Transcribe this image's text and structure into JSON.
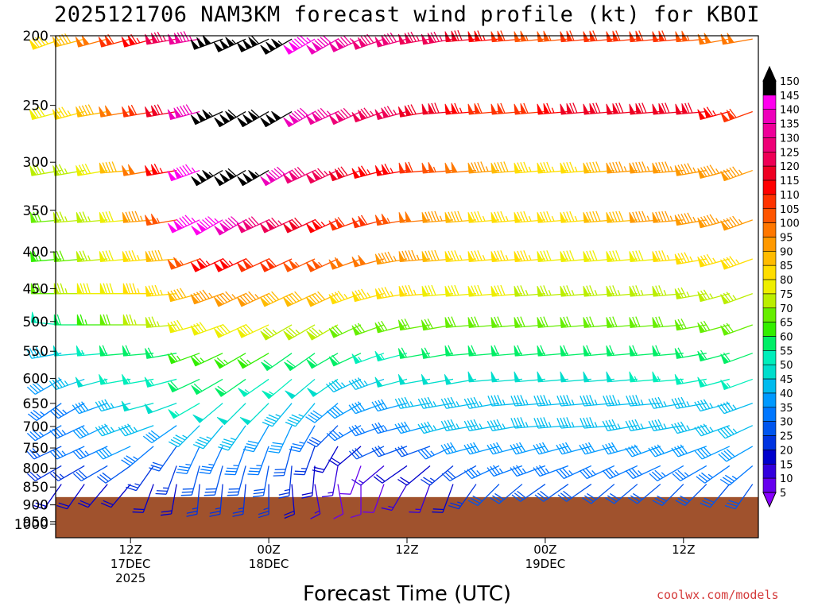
{
  "chart_data": {
    "type": "wind-barb-profile",
    "title": "2025121706 NAM3KM forecast wind profile (kt) for KBOI",
    "xlabel": "Forecast Time (UTC)",
    "ylabel": "",
    "y_scale": "log-pressure",
    "ylim": [
      1000,
      200
    ],
    "y_ticks": [
      200,
      250,
      300,
      350,
      400,
      450,
      500,
      550,
      600,
      650,
      700,
      750,
      800,
      850,
      900,
      950,
      1000
    ],
    "x_range_hours": [
      -0.5,
      60.5
    ],
    "x_ticks": [
      {
        "hour": 6,
        "lines": [
          "12Z",
          "17DEC",
          "2025"
        ]
      },
      {
        "hour": 18,
        "lines": [
          "00Z",
          "18DEC"
        ]
      },
      {
        "hour": 30,
        "lines": [
          "12Z"
        ]
      },
      {
        "hour": 42,
        "lines": [
          "00Z",
          "19DEC"
        ]
      },
      {
        "hour": 54,
        "lines": [
          "12Z"
        ]
      }
    ],
    "levels_hpa": [
      210,
      265,
      320,
      375,
      425,
      475,
      525,
      575,
      625,
      675,
      725,
      775,
      825,
      875,
      925
    ],
    "terrain_pressure_hpa": 912,
    "colorbar": {
      "values": [
        5,
        10,
        15,
        20,
        25,
        30,
        35,
        40,
        45,
        50,
        55,
        60,
        65,
        70,
        75,
        80,
        85,
        90,
        95,
        100,
        105,
        110,
        115,
        120,
        125,
        130,
        135,
        140,
        145,
        150
      ],
      "colors": [
        "#8800ff",
        "#6600ee",
        "#3300dd",
        "#0000cc",
        "#0033e0",
        "#0055ee",
        "#0077ff",
        "#0099ff",
        "#00bbee",
        "#00ddcc",
        "#00eebb",
        "#00ee66",
        "#33ee00",
        "#66ee00",
        "#bbee00",
        "#eeee00",
        "#ffdd00",
        "#ffbb00",
        "#ff9900",
        "#ff7700",
        "#ff5500",
        "#ff3300",
        "#ff0000",
        "#ee0022",
        "#ee0055",
        "#ee0077",
        "#ee0099",
        "#ee00bb",
        "#ff00ee",
        "#000000"
      ],
      "over_color": "#000000",
      "under_color": "#8800ff"
    },
    "profiles": [
      {
        "hour": 0,
        "dir": [
          250,
          255,
          260,
          265,
          265,
          270,
          275,
          260,
          240,
          235,
          240,
          245,
          240,
          215,
          195
        ],
        "spd": [
          85,
          80,
          75,
          70,
          65,
          70,
          55,
          45,
          40,
          35,
          35,
          30,
          25,
          20,
          15
        ]
      },
      {
        "hour": 2,
        "dir": [
          255,
          255,
          260,
          265,
          265,
          270,
          270,
          265,
          250,
          240,
          245,
          245,
          240,
          215,
          200
        ],
        "spd": [
          90,
          85,
          75,
          75,
          70,
          75,
          60,
          50,
          45,
          35,
          35,
          35,
          25,
          20,
          15
        ]
      },
      {
        "hour": 4,
        "dir": [
          255,
          260,
          260,
          265,
          265,
          270,
          270,
          265,
          255,
          250,
          245,
          245,
          240,
          220,
          200
        ],
        "spd": [
          100,
          90,
          80,
          75,
          75,
          80,
          65,
          55,
          50,
          40,
          40,
          35,
          30,
          20,
          15
        ]
      },
      {
        "hour": 6,
        "dir": [
          255,
          260,
          265,
          265,
          265,
          270,
          270,
          265,
          260,
          255,
          250,
          245,
          235,
          220,
          200
        ],
        "spd": [
          110,
          100,
          90,
          80,
          80,
          80,
          70,
          60,
          55,
          45,
          45,
          40,
          30,
          20,
          15
        ]
      },
      {
        "hour": 8,
        "dir": [
          255,
          260,
          260,
          265,
          265,
          270,
          270,
          265,
          260,
          255,
          250,
          230,
          215,
          200,
          190
        ],
        "spd": [
          115,
          110,
          100,
          95,
          85,
          85,
          75,
          60,
          55,
          50,
          45,
          35,
          25,
          20,
          15
        ]
      },
      {
        "hour": 10,
        "dir": [
          260,
          260,
          260,
          260,
          265,
          265,
          265,
          260,
          255,
          250,
          235,
          215,
          200,
          190,
          180
        ],
        "spd": [
          125,
          120,
          115,
          105,
          90,
          85,
          75,
          60,
          55,
          50,
          40,
          30,
          25,
          20,
          15
        ]
      },
      {
        "hour": 12,
        "dir": [
          260,
          255,
          250,
          245,
          250,
          255,
          255,
          250,
          245,
          240,
          225,
          205,
          195,
          185,
          175
        ],
        "spd": [
          135,
          140,
          145,
          145,
          105,
          90,
          80,
          65,
          60,
          55,
          45,
          35,
          30,
          25,
          20
        ]
      },
      {
        "hour": 14,
        "dir": [
          250,
          245,
          240,
          240,
          245,
          250,
          250,
          245,
          240,
          230,
          220,
          205,
          195,
          185,
          175
        ],
        "spd": [
          150,
          155,
          155,
          145,
          115,
          95,
          80,
          65,
          60,
          50,
          45,
          35,
          30,
          25,
          20
        ]
      },
      {
        "hour": 16,
        "dir": [
          245,
          240,
          240,
          240,
          245,
          245,
          245,
          240,
          235,
          225,
          215,
          200,
          195,
          185,
          170
        ],
        "spd": [
          155,
          160,
          160,
          140,
          115,
          95,
          80,
          65,
          60,
          50,
          45,
          35,
          30,
          25,
          20
        ]
      },
      {
        "hour": 18,
        "dir": [
          245,
          240,
          240,
          245,
          245,
          245,
          245,
          240,
          235,
          225,
          210,
          200,
          190,
          180,
          165
        ],
        "spd": [
          160,
          160,
          155,
          130,
          110,
          95,
          80,
          65,
          55,
          50,
          40,
          35,
          30,
          25,
          15
        ]
      },
      {
        "hour": 20,
        "dir": [
          240,
          240,
          240,
          245,
          245,
          245,
          240,
          235,
          230,
          220,
          205,
          195,
          185,
          175,
          160
        ],
        "spd": [
          155,
          150,
          140,
          125,
          110,
          90,
          75,
          60,
          55,
          45,
          40,
          30,
          25,
          20,
          15
        ]
      },
      {
        "hour": 22,
        "dir": [
          240,
          240,
          245,
          245,
          245,
          245,
          240,
          235,
          230,
          220,
          210,
          200,
          185,
          170,
          155
        ],
        "spd": [
          145,
          140,
          130,
          120,
          105,
          90,
          75,
          60,
          50,
          45,
          35,
          25,
          20,
          15,
          10
        ]
      },
      {
        "hour": 24,
        "dir": [
          240,
          245,
          245,
          245,
          245,
          245,
          240,
          240,
          235,
          230,
          225,
          210,
          190,
          170,
          150
        ],
        "spd": [
          140,
          135,
          125,
          115,
          105,
          90,
          75,
          60,
          50,
          40,
          30,
          20,
          15,
          10,
          5
        ]
      },
      {
        "hour": 26,
        "dir": [
          245,
          245,
          250,
          250,
          250,
          250,
          245,
          245,
          245,
          240,
          240,
          230,
          200,
          180,
          160
        ],
        "spd": [
          135,
          130,
          120,
          110,
          100,
          85,
          70,
          60,
          45,
          40,
          35,
          20,
          10,
          8,
          5
        ]
      },
      {
        "hour": 28,
        "dir": [
          250,
          250,
          255,
          255,
          255,
          255,
          250,
          250,
          250,
          250,
          250,
          245,
          230,
          200,
          170
        ],
        "spd": [
          130,
          125,
          115,
          110,
          100,
          85,
          70,
          55,
          45,
          40,
          35,
          30,
          15,
          10,
          10
        ]
      },
      {
        "hour": 30,
        "dir": [
          255,
          255,
          260,
          260,
          260,
          260,
          255,
          255,
          255,
          255,
          255,
          250,
          235,
          210,
          180
        ],
        "spd": [
          130,
          125,
          115,
          105,
          95,
          85,
          70,
          55,
          50,
          40,
          35,
          30,
          20,
          15,
          10
        ]
      },
      {
        "hour": 32,
        "dir": [
          260,
          260,
          265,
          265,
          265,
          265,
          260,
          260,
          260,
          260,
          255,
          250,
          230,
          200,
          170
        ],
        "spd": [
          125,
          120,
          110,
          100,
          95,
          85,
          70,
          60,
          50,
          45,
          40,
          30,
          20,
          15,
          10
        ]
      },
      {
        "hour": 34,
        "dir": [
          260,
          265,
          265,
          265,
          265,
          265,
          260,
          260,
          260,
          260,
          255,
          245,
          230,
          200,
          170
        ],
        "spd": [
          125,
          120,
          105,
          95,
          90,
          80,
          70,
          60,
          50,
          45,
          45,
          35,
          25,
          20,
          15
        ]
      },
      {
        "hour": 36,
        "dir": [
          265,
          265,
          265,
          265,
          265,
          265,
          265,
          265,
          260,
          260,
          260,
          255,
          240,
          215,
          185
        ],
        "spd": [
          120,
          115,
          100,
          90,
          85,
          80,
          70,
          60,
          50,
          45,
          45,
          40,
          30,
          25,
          20
        ]
      },
      {
        "hour": 38,
        "dir": [
          265,
          265,
          265,
          265,
          265,
          265,
          265,
          265,
          265,
          260,
          260,
          255,
          245,
          225,
          195
        ],
        "spd": [
          115,
          110,
          95,
          85,
          85,
          80,
          70,
          60,
          50,
          45,
          45,
          40,
          35,
          30,
          20
        ]
      },
      {
        "hour": 40,
        "dir": [
          265,
          265,
          265,
          265,
          265,
          265,
          265,
          265,
          265,
          265,
          260,
          255,
          250,
          230,
          200
        ],
        "spd": [
          110,
          110,
          90,
          85,
          85,
          80,
          70,
          60,
          50,
          45,
          45,
          40,
          35,
          30,
          20
        ]
      },
      {
        "hour": 42,
        "dir": [
          265,
          265,
          265,
          265,
          265,
          265,
          265,
          265,
          265,
          265,
          265,
          255,
          250,
          235,
          205
        ],
        "spd": [
          105,
          110,
          85,
          85,
          85,
          75,
          70,
          60,
          50,
          45,
          45,
          40,
          35,
          30,
          20
        ]
      },
      {
        "hour": 44,
        "dir": [
          265,
          265,
          265,
          265,
          265,
          265,
          265,
          265,
          265,
          265,
          265,
          255,
          250,
          235,
          210
        ],
        "spd": [
          105,
          115,
          85,
          85,
          80,
          75,
          70,
          60,
          50,
          45,
          45,
          40,
          35,
          30,
          20
        ]
      },
      {
        "hour": 46,
        "dir": [
          265,
          265,
          265,
          265,
          265,
          265,
          265,
          265,
          265,
          265,
          265,
          255,
          245,
          235,
          215
        ],
        "spd": [
          110,
          120,
          85,
          85,
          80,
          75,
          70,
          60,
          50,
          45,
          45,
          40,
          35,
          30,
          20
        ]
      },
      {
        "hour": 48,
        "dir": [
          265,
          265,
          265,
          265,
          265,
          265,
          265,
          265,
          265,
          265,
          265,
          255,
          245,
          230,
          215
        ],
        "spd": [
          110,
          120,
          90,
          90,
          80,
          75,
          70,
          60,
          50,
          45,
          45,
          40,
          35,
          30,
          25
        ]
      },
      {
        "hour": 50,
        "dir": [
          265,
          265,
          265,
          265,
          265,
          265,
          265,
          265,
          265,
          265,
          260,
          255,
          245,
          230,
          215
        ],
        "spd": [
          110,
          120,
          95,
          90,
          80,
          75,
          70,
          60,
          50,
          45,
          45,
          40,
          35,
          30,
          25
        ]
      },
      {
        "hour": 52,
        "dir": [
          265,
          265,
          265,
          265,
          265,
          265,
          265,
          265,
          265,
          265,
          260,
          250,
          245,
          230,
          215
        ],
        "spd": [
          110,
          120,
          95,
          95,
          80,
          75,
          70,
          60,
          55,
          45,
          45,
          40,
          35,
          30,
          25
        ]
      },
      {
        "hour": 54,
        "dir": [
          265,
          265,
          265,
          265,
          265,
          265,
          265,
          265,
          265,
          260,
          260,
          250,
          240,
          225,
          210
        ],
        "spd": [
          110,
          120,
          95,
          95,
          85,
          75,
          70,
          60,
          55,
          45,
          45,
          40,
          35,
          30,
          25
        ]
      },
      {
        "hour": 56,
        "dir": [
          265,
          265,
          260,
          260,
          260,
          260,
          260,
          260,
          260,
          260,
          255,
          250,
          240,
          225,
          210
        ],
        "spd": [
          105,
          120,
          95,
          95,
          85,
          75,
          70,
          60,
          55,
          45,
          45,
          40,
          35,
          30,
          25
        ]
      },
      {
        "hour": 58,
        "dir": [
          260,
          255,
          255,
          255,
          255,
          255,
          255,
          255,
          255,
          255,
          250,
          245,
          235,
          220,
          205
        ],
        "spd": [
          100,
          115,
          95,
          95,
          85,
          75,
          70,
          60,
          55,
          45,
          45,
          40,
          35,
          30,
          25
        ]
      },
      {
        "hour": 60,
        "dir": [
          260,
          250,
          250,
          250,
          250,
          250,
          250,
          250,
          250,
          250,
          245,
          240,
          230,
          215,
          200
        ],
        "spd": [
          100,
          110,
          95,
          95,
          85,
          75,
          70,
          60,
          55,
          45,
          45,
          40,
          35,
          30,
          25
        ]
      }
    ]
  },
  "footer": {
    "site_label": "coolwx.com/models"
  }
}
